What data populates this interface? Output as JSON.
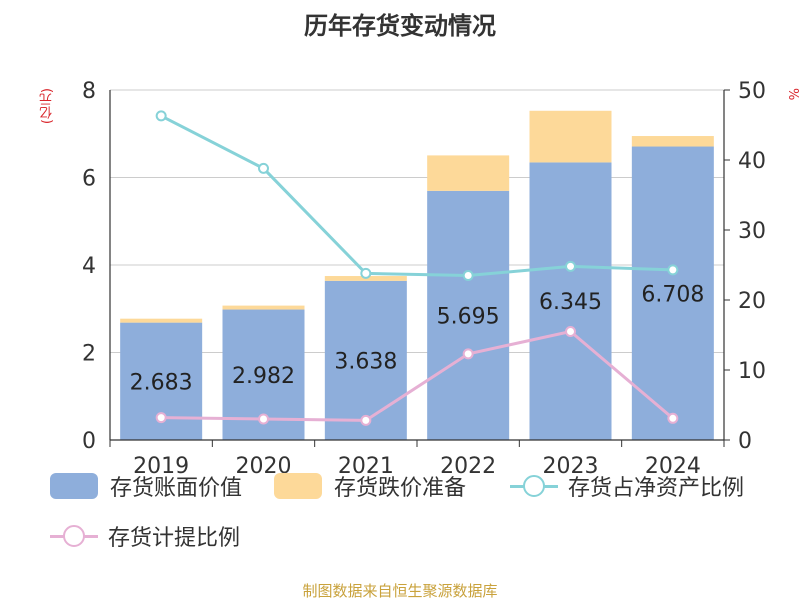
{
  "chart_data": {
    "type": "bar",
    "title": "历年存货变动情况",
    "left_axis_unit": "(亿元)",
    "right_axis_unit": "%",
    "categories": [
      "2019",
      "2020",
      "2021",
      "2022",
      "2023",
      "2024"
    ],
    "ylim_left": [
      0,
      8
    ],
    "yticks_left": [
      0,
      2,
      4,
      6,
      8
    ],
    "ylim_right": [
      0,
      50
    ],
    "yticks_right": [
      0,
      10,
      20,
      30,
      40,
      50
    ],
    "grid": true,
    "stacked": true,
    "series": [
      {
        "name": "存货账面价值",
        "kind": "bar",
        "axis": "left",
        "color": "#8eaedb",
        "values": [
          2.683,
          2.982,
          3.638,
          5.695,
          6.345,
          6.708
        ],
        "labels": [
          "2.683",
          "2.982",
          "3.638",
          "5.695",
          "6.345",
          "6.708"
        ]
      },
      {
        "name": "存货跌价准备",
        "kind": "bar",
        "axis": "left",
        "color": "#fdd999",
        "values": [
          0.09,
          0.09,
          0.11,
          0.81,
          1.18,
          0.24
        ]
      },
      {
        "name": "存货占净资产比例",
        "kind": "line",
        "axis": "right",
        "color": "#86d2d8",
        "values": [
          46.3,
          38.8,
          23.8,
          23.5,
          24.8,
          24.3
        ]
      },
      {
        "name": "存货计提比例",
        "kind": "line",
        "axis": "right",
        "color": "#e6b0d4",
        "values": [
          3.2,
          3.0,
          2.8,
          12.3,
          15.5,
          3.1
        ]
      }
    ],
    "legend_position": "bottom"
  },
  "footer": "制图数据来自恒生聚源数据库"
}
